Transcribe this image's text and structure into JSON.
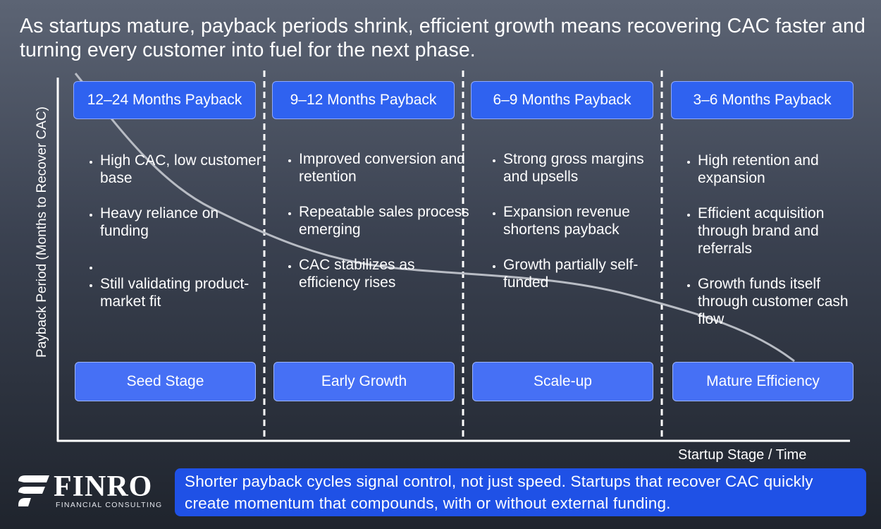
{
  "headline": "As startups mature, payback periods shrink, efficient growth means recovering CAC faster and turning every customer into fuel for the next phase.",
  "axes": {
    "y_label": "Payback Period (Months to Recover CAC)",
    "x_label": "Startup Stage / Time"
  },
  "stages": [
    {
      "payback": "12–24 Months Payback",
      "stage": "Seed Stage",
      "bullets": [
        "High CAC, low customer base",
        "Heavy reliance on funding",
        "",
        "Still validating product-market fit"
      ]
    },
    {
      "payback": "9–12 Months Payback",
      "stage": "Early Growth",
      "bullets": [
        "Improved conversion and retention",
        "Repeatable sales process emerging",
        "CAC stabilizes as efficiency rises"
      ]
    },
    {
      "payback": "6–9 Months Payback",
      "stage": "Scale-up",
      "bullets": [
        "Strong gross margins and upsells",
        "Expansion revenue shortens payback",
        "Growth partially self-funded"
      ]
    },
    {
      "payback": "3–6 Months Payback",
      "stage": "Mature Efficiency",
      "bullets": [
        "High retention and expansion",
        "Efficient acquisition through brand and referrals",
        "Growth funds itself through customer cash flow"
      ]
    }
  ],
  "brand": {
    "name": "FINRO",
    "tagline": "FINANCIAL CONSULTING"
  },
  "summary": "Shorter payback cycles signal control, not just speed. Startups that recover CAC quickly create momentum that compounds, with or without external funding.",
  "colors": {
    "box_blue": "#2f62f0",
    "stage_blue": "#4670f5",
    "summary_blue": "#1f51e6",
    "curve_gray": "#b8bcc4"
  }
}
